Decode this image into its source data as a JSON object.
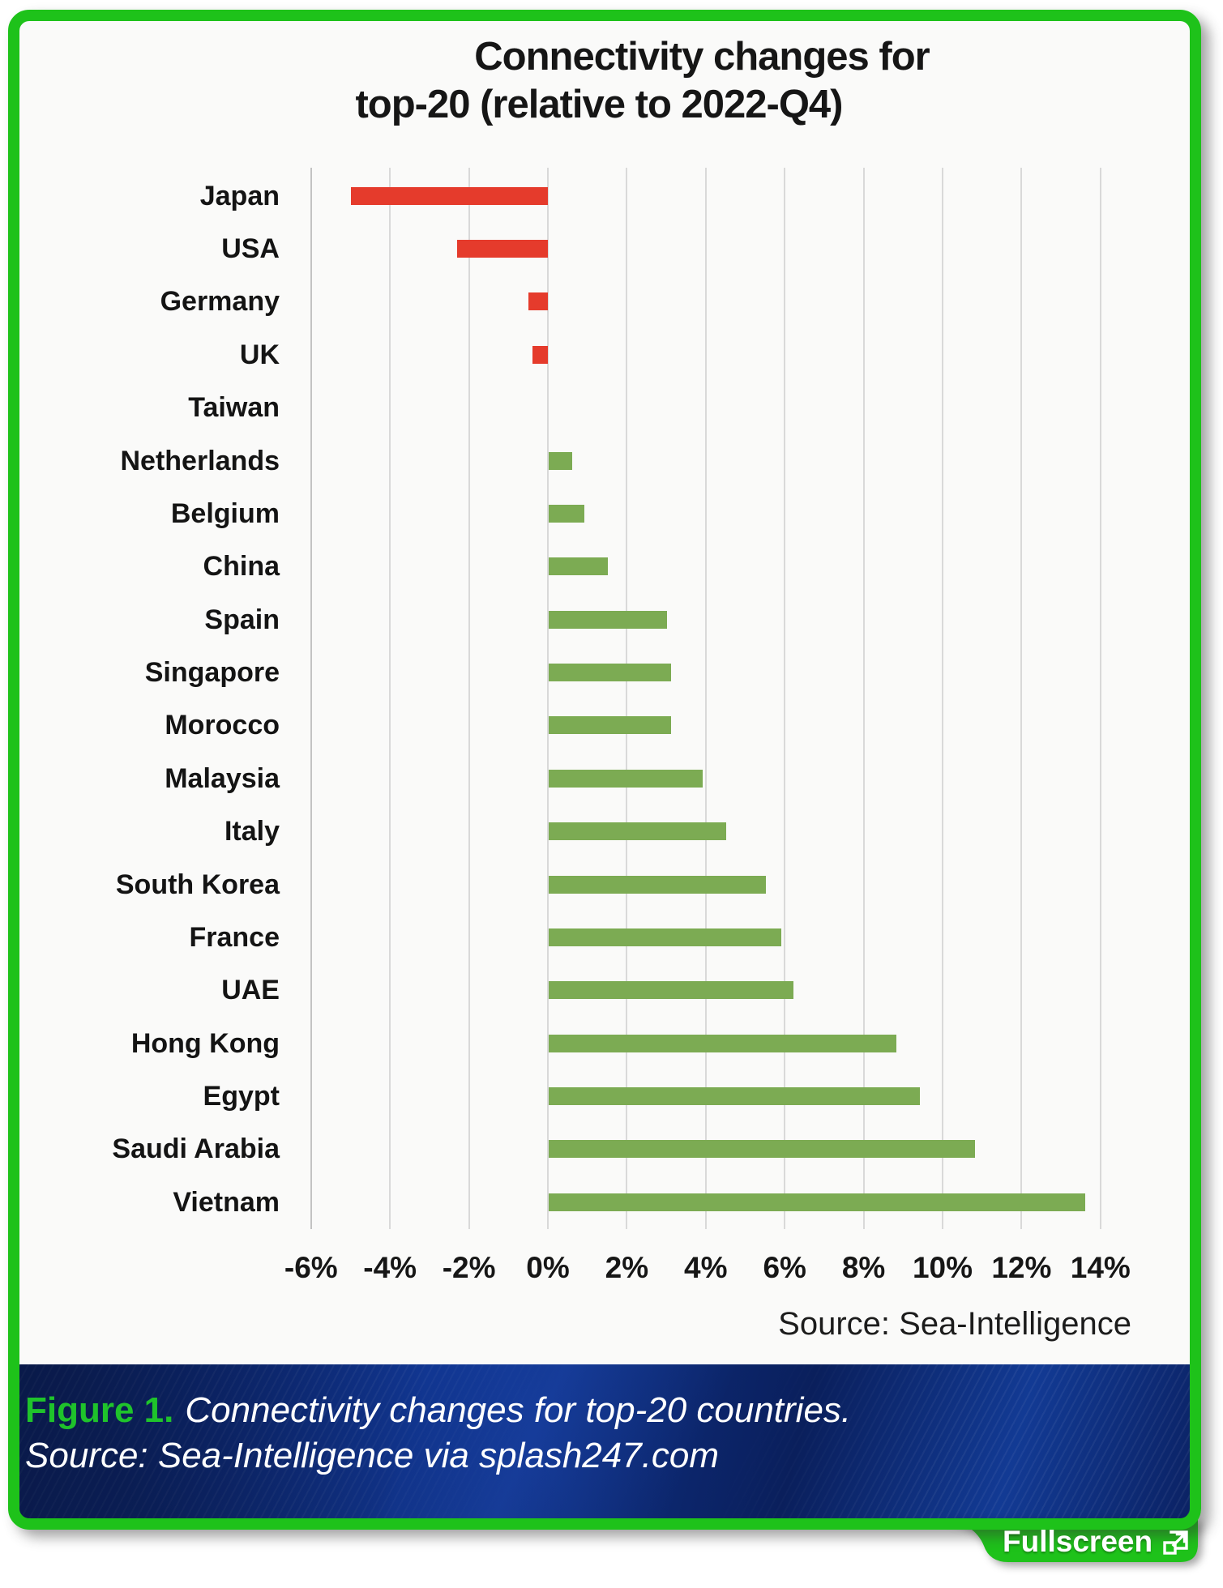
{
  "chart": {
    "title_line1": "Connectivity changes for",
    "title_line2": "top-20 (relative to 2022-Q4)",
    "source_note": "Source: Sea-Intelligence"
  },
  "chart_data": {
    "type": "bar",
    "orientation": "horizontal",
    "title": "Connectivity changes for top-20 (relative to 2022-Q4)",
    "unit": "%",
    "categories": [
      "Japan",
      "USA",
      "Germany",
      "UK",
      "Taiwan",
      "Netherlands",
      "Belgium",
      "China",
      "Spain",
      "Singapore",
      "Morocco",
      "Malaysia",
      "Italy",
      "South Korea",
      "France",
      "UAE",
      "Hong Kong",
      "Egypt",
      "Saudi Arabia",
      "Vietnam"
    ],
    "values": [
      -5.0,
      -2.3,
      -0.5,
      -0.4,
      0.0,
      0.6,
      0.9,
      1.5,
      3.0,
      3.1,
      3.1,
      3.9,
      4.5,
      5.5,
      5.9,
      6.2,
      8.8,
      9.4,
      10.8,
      13.6
    ],
    "xlim": [
      -6,
      14
    ],
    "x_ticks": [
      -6,
      -4,
      -2,
      0,
      2,
      4,
      6,
      8,
      10,
      12,
      14
    ],
    "x_tick_labels": [
      "-6%",
      "-4%",
      "-2%",
      "0%",
      "2%",
      "4%",
      "6%",
      "8%",
      "10%",
      "12%",
      "14%"
    ],
    "grid": true,
    "legend": "none",
    "negative_color": "#e53b2c",
    "positive_color": "#7cab53",
    "source": "Source: Sea-Intelligence"
  },
  "caption": {
    "figure_label": "Figure 1.",
    "line1_text": "Connectivity changes for top-20 countries.",
    "line2_text": "Source: Sea-Intelligence via splash247.com"
  },
  "fullscreen": {
    "label": "Fullscreen"
  },
  "colors": {
    "frame_green": "#1ec21a",
    "caption_green": "#1fc32b",
    "band_navy": "#0d2a75",
    "negative_bar": "#e53b2c",
    "positive_bar": "#7cab53"
  }
}
